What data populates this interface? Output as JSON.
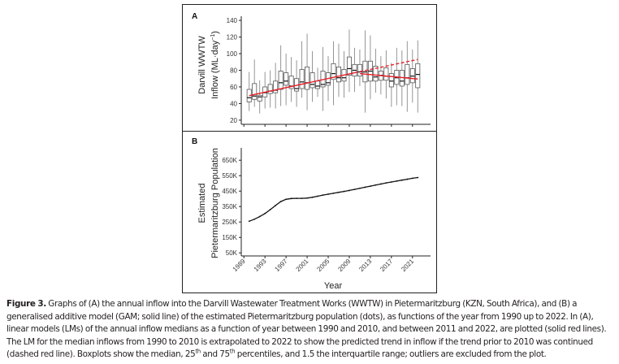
{
  "chart_data": [
    {
      "panel": "A",
      "type": "boxplot",
      "ylabel_line1": "Darvill WWTW",
      "ylabel_line2": "Inflow (ML·day",
      "ylabel_sup": "−1",
      "ylabel_close": ")",
      "ylim": [
        15,
        145
      ],
      "yticks": [
        20,
        40,
        60,
        80,
        100,
        120,
        140
      ],
      "xlim": [
        1988.5,
        2023.5
      ],
      "xticks": [
        1989,
        1993,
        1997,
        2001,
        2005,
        2009,
        2013,
        2017,
        2021
      ],
      "show_xtick_labels": false,
      "boxes": [
        {
          "year": 1990,
          "q1": 42,
          "median": 47,
          "q3": 57,
          "lo": 31,
          "hi": 78
        },
        {
          "year": 1991,
          "q1": 45,
          "median": 49,
          "q3": 64,
          "lo": 36,
          "hi": 93
        },
        {
          "year": 1992,
          "q1": 43,
          "median": 48,
          "q3": 50,
          "lo": 28,
          "hi": 68
        },
        {
          "year": 1993,
          "q1": 48,
          "median": 53,
          "q3": 60,
          "lo": 34,
          "hi": 78
        },
        {
          "year": 1994,
          "q1": 52,
          "median": 55,
          "q3": 63,
          "lo": 35,
          "hi": 80
        },
        {
          "year": 1995,
          "q1": 53,
          "median": 56,
          "q3": 67,
          "lo": 34,
          "hi": 89
        },
        {
          "year": 1996,
          "q1": 57,
          "median": 65,
          "q3": 79,
          "lo": 37,
          "hi": 110
        },
        {
          "year": 1997,
          "q1": 62,
          "median": 67,
          "q3": 77,
          "lo": 38,
          "hi": 100
        },
        {
          "year": 1998,
          "q1": 58,
          "median": 61,
          "q3": 73,
          "lo": 42,
          "hi": 96
        },
        {
          "year": 1999,
          "q1": 55,
          "median": 58,
          "q3": 70,
          "lo": 36,
          "hi": 92
        },
        {
          "year": 2000,
          "q1": 58,
          "median": 66,
          "q3": 81,
          "lo": 47,
          "hi": 115
        },
        {
          "year": 2001,
          "q1": 57,
          "median": 65,
          "q3": 84,
          "lo": 32,
          "hi": 124
        },
        {
          "year": 2002,
          "q1": 59,
          "median": 63,
          "q3": 77,
          "lo": 42,
          "hi": 103
        },
        {
          "year": 2003,
          "q1": 58,
          "median": 61,
          "q3": 67,
          "lo": 48,
          "hi": 83
        },
        {
          "year": 2004,
          "q1": 60,
          "median": 63,
          "q3": 79,
          "lo": 31,
          "hi": 108
        },
        {
          "year": 2005,
          "q1": 62,
          "median": 65,
          "q3": 77,
          "lo": 43,
          "hi": 97
        },
        {
          "year": 2006,
          "q1": 69,
          "median": 76,
          "q3": 88,
          "lo": 38,
          "hi": 115
        },
        {
          "year": 2007,
          "q1": 66,
          "median": 71,
          "q3": 84,
          "lo": 48,
          "hi": 112
        },
        {
          "year": 2008,
          "q1": 67,
          "median": 71,
          "q3": 81,
          "lo": 47,
          "hi": 103
        },
        {
          "year": 2009,
          "q1": 74,
          "median": 82,
          "q3": 96,
          "lo": 54,
          "hi": 129
        },
        {
          "year": 2010,
          "q1": 73,
          "median": 80,
          "q3": 87,
          "lo": 54,
          "hi": 107
        },
        {
          "year": 2011,
          "q1": 73,
          "median": 78,
          "q3": 87,
          "lo": 61,
          "hi": 105
        },
        {
          "year": 2012,
          "q1": 66,
          "median": 78,
          "q3": 91,
          "lo": 29,
          "hi": 128
        },
        {
          "year": 2013,
          "q1": 67,
          "median": 79,
          "q3": 91,
          "lo": 45,
          "hi": 122
        },
        {
          "year": 2014,
          "q1": 67,
          "median": 72,
          "q3": 85,
          "lo": 53,
          "hi": 106
        },
        {
          "year": 2015,
          "q1": 68,
          "median": 74,
          "q3": 79,
          "lo": 51,
          "hi": 97
        },
        {
          "year": 2016,
          "q1": 68,
          "median": 73,
          "q3": 83,
          "lo": 46,
          "hi": 104
        },
        {
          "year": 2017,
          "q1": 60,
          "median": 67,
          "q3": 76,
          "lo": 36,
          "hi": 89
        },
        {
          "year": 2018,
          "q1": 63,
          "median": 71,
          "q3": 80,
          "lo": 38,
          "hi": 107
        },
        {
          "year": 2019,
          "q1": 61,
          "median": 67,
          "q3": 80,
          "lo": 37,
          "hi": 104
        },
        {
          "year": 2020,
          "q1": 63,
          "median": 71,
          "q3": 87,
          "lo": 30,
          "hi": 115
        },
        {
          "year": 2021,
          "q1": 65,
          "median": 73,
          "q3": 82,
          "lo": 41,
          "hi": 105
        },
        {
          "year": 2022,
          "q1": 59,
          "median": 75,
          "q3": 88,
          "lo": 29,
          "hi": 116
        }
      ],
      "trend_lines": [
        {
          "name": "LM 1990-2010",
          "style": "solid",
          "color": "#e8212a",
          "x": [
            1990,
            2010
          ],
          "y": [
            49.5,
            77
          ]
        },
        {
          "name": "LM 2011-2022",
          "style": "solid",
          "color": "#e8212a",
          "x": [
            2011,
            2022
          ],
          "y": [
            76,
            69.5
          ]
        },
        {
          "name": "LM 1990-2010 extrapolated",
          "style": "dashed",
          "color": "#e8212a",
          "x": [
            2010,
            2022
          ],
          "y": [
            77,
            93
          ]
        }
      ]
    },
    {
      "panel": "B",
      "type": "line",
      "ylabel_line1": "Estimated",
      "ylabel_line2": "Pietermaritzburg Population",
      "xlabel": "Year",
      "ylim": [
        30000,
        730000
      ],
      "yticks": [
        50000,
        150000,
        250000,
        350000,
        450000,
        550000,
        650000
      ],
      "ytick_labels": [
        "50K",
        "150K",
        "250K",
        "350K",
        "450K",
        "550K",
        "650K"
      ],
      "xlim": [
        1988.5,
        2023.5
      ],
      "xticks": [
        1989,
        1993,
        1997,
        2001,
        2005,
        2009,
        2013,
        2017,
        2021
      ],
      "xtick_labels": [
        "1989",
        "1993",
        "1997",
        "2001",
        "2005",
        "2009",
        "2013",
        "2017",
        "2021"
      ],
      "series": [
        {
          "name": "Estimated population (GAM + dots)",
          "x": [
            1990,
            1991,
            1992,
            1993,
            1994,
            1995,
            1996,
            1997,
            1998,
            1999,
            2000,
            2001,
            2002,
            2003,
            2004,
            2005,
            2006,
            2007,
            2008,
            2009,
            2010,
            2011,
            2012,
            2013,
            2014,
            2015,
            2016,
            2017,
            2018,
            2019,
            2020,
            2021,
            2022
          ],
          "y": [
            255000,
            268000,
            285000,
            305000,
            330000,
            357000,
            382000,
            397000,
            402000,
            403000,
            403000,
            405000,
            410000,
            417000,
            424000,
            430000,
            436000,
            442000,
            448000,
            454000,
            461000,
            468000,
            475000,
            482000,
            489000,
            496000,
            503000,
            509000,
            515000,
            521000,
            527000,
            533000,
            538000
          ]
        }
      ]
    }
  ],
  "panel_labels": {
    "a": "A",
    "b": "B"
  },
  "caption": {
    "label": "Figure 3.",
    "seg1": " Graphs of (A) the annual inflow into the Darvill Wastewater Treatment Works (WWTW) in Pietermaritzburg (KZN, South Africa), and (B) a generalised additive model (GAM; solid line) of the estimated Pietermaritzburg population (dots), as functions of the year from 1990 up to 2022. In (A), linear models (LMs) of the annual inflow medians as a function of year between 1990 and 2010, and between 2011 and 2022, are plotted (solid red lines). The LM for the median inflows from 1990 to 2010 is extrapolated to 2022 to show the predicted trend in inflow if the trend prior to 2010 was continued (dashed red line). Boxplots show the median, 25",
    "sup1": "th",
    "seg2": " and 75",
    "sup2": "th",
    "seg3": " percentiles, and 1.5 the interquartile range; outliers are excluded from the plot."
  },
  "colors": {
    "frame": "#222222",
    "box_stroke": "#555555",
    "whisker": "#8a8a8a",
    "median": "#111111",
    "trend": "#e8212a",
    "population_line": "#111111",
    "axis": "#222222",
    "text": "#231f20"
  }
}
